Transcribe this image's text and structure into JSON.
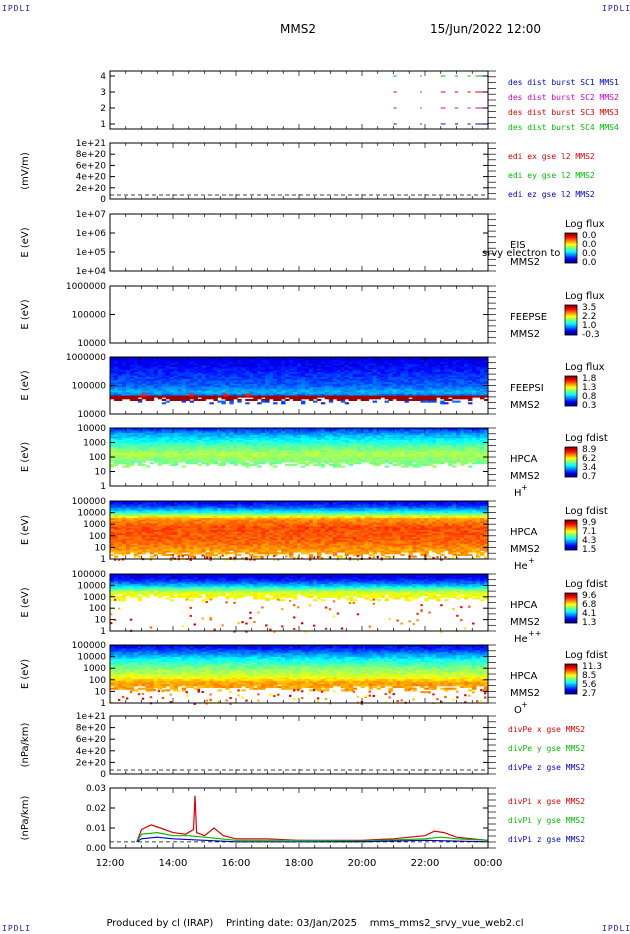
{
  "header": {
    "corner_tl": "IPDLI",
    "corner_tr": "IPDLI",
    "corner_bl": "IPDLI",
    "corner_br": "IPDLI",
    "title": "MMS2",
    "datetime": "15/Jun/2022 12:00"
  },
  "footer": {
    "text": "Produced by cl (IRAP)    Printing date: 03/Jan/2025    mms_mms2_srvy_vue_web2.cl"
  },
  "chart_data": {
    "type": "multi-panel",
    "x_ticks": [
      "12:00",
      "14:00",
      "16:00",
      "18:00",
      "20:00",
      "22:00",
      "00:00"
    ],
    "x_range_hours": [
      12,
      24
    ],
    "panels": [
      {
        "type": "line",
        "ylabel": "",
        "y_ticks": [
          "4",
          "3",
          "2",
          "1"
        ],
        "legend": [
          {
            "text": "des dist burst SC1 MMS1",
            "color": "#0000cc"
          },
          {
            "text": "des dist burst SC2 MMS2",
            "color": "#cc00cc"
          },
          {
            "text": "des dist burst SC3 MMS3",
            "color": "#dd0000"
          },
          {
            "text": "des dist burst SC4 MMS4",
            "color": "#00bb00"
          }
        ],
        "burst_intervals_hours": [
          [
            21.0,
            21.1
          ],
          [
            21.85,
            21.9
          ],
          [
            22.5,
            22.65
          ],
          [
            22.95,
            23.05
          ],
          [
            23.35,
            23.45
          ],
          [
            23.6,
            24.0
          ]
        ]
      },
      {
        "type": "line",
        "ylabel": "(mV/m)",
        "y_ticks": [
          "1e+21",
          "8e+20",
          "6e+20",
          "4e+20",
          "2e+20",
          "0"
        ],
        "legend": [
          {
            "text": "edi ex gse l2 MMS2",
            "color": "#dd0000"
          },
          {
            "text": "edi ey gse l2 MMS2",
            "color": "#00bb00"
          },
          {
            "text": "edi ez gse l2 MMS2",
            "color": "#0000cc"
          }
        ]
      },
      {
        "type": "heatmap",
        "ylabel": "E (eV)",
        "y_ticks": [
          "1e+07",
          "1e+06",
          "1e+05",
          "1e+04"
        ],
        "instrument": "EIS",
        "sc": "MMS2",
        "extra_text": "srvy electron to",
        "colorbar_title": "Log flux",
        "colorbar_ticks": [
          "0.0",
          "0.0",
          "0.0",
          "0.0"
        ]
      },
      {
        "type": "heatmap",
        "ylabel": "E (eV)",
        "y_ticks": [
          "1000000",
          "100000",
          "10000"
        ],
        "instrument": "FEEPSE",
        "sc": "MMS2",
        "colorbar_title": "Log flux",
        "colorbar_ticks": [
          "3.5",
          "2.2",
          "1.0",
          "-0.3"
        ]
      },
      {
        "type": "heatmap",
        "ylabel": "E (eV)",
        "y_ticks": [
          "1000000",
          "100000",
          "10000"
        ],
        "instrument": "FEEPSI",
        "sc": "MMS2",
        "colorbar_title": "Log flux",
        "colorbar_ticks": [
          "1.8",
          "1.3",
          "0.8",
          "0.3"
        ]
      },
      {
        "type": "heatmap",
        "ylabel": "E (eV)",
        "y_ticks": [
          "10000",
          "1000",
          "100",
          "10",
          "1"
        ],
        "instrument": "HPCA",
        "sc": "MMS2",
        "species": "H",
        "species_sup": "+",
        "colorbar_title": "Log fdist",
        "colorbar_ticks": [
          "8.9",
          "6.2",
          "3.4",
          "0.7"
        ]
      },
      {
        "type": "heatmap",
        "ylabel": "E (eV)",
        "y_ticks": [
          "100000",
          "10000",
          "1000",
          "100",
          "10",
          "1"
        ],
        "instrument": "HPCA",
        "sc": "MMS2",
        "species": "He",
        "species_sup": "+",
        "colorbar_title": "Log fdist",
        "colorbar_ticks": [
          "9.9",
          "7.1",
          "4.3",
          "1.5"
        ]
      },
      {
        "type": "heatmap",
        "ylabel": "E (eV)",
        "y_ticks": [
          "100000",
          "10000",
          "1000",
          "100",
          "10",
          "1"
        ],
        "instrument": "HPCA",
        "sc": "MMS2",
        "species": "He",
        "species_sup": "++",
        "colorbar_title": "Log fdist",
        "colorbar_ticks": [
          "9.6",
          "6.8",
          "4.1",
          "1.3"
        ]
      },
      {
        "type": "heatmap",
        "ylabel": "E (eV)",
        "y_ticks": [
          "100000",
          "10000",
          "1000",
          "100",
          "10",
          "1"
        ],
        "instrument": "HPCA",
        "sc": "MMS2",
        "species": "O",
        "species_sup": "+",
        "colorbar_title": "Log fdist",
        "colorbar_ticks": [
          "11.3",
          "8.5",
          "5.6",
          "2.7"
        ]
      },
      {
        "type": "line",
        "ylabel": "(nPa/km)",
        "y_ticks": [
          "1e+21",
          "8e+20",
          "6e+20",
          "4e+20",
          "2e+20",
          "0"
        ],
        "legend": [
          {
            "text": "divPe x gse MMS2",
            "color": "#dd0000"
          },
          {
            "text": "divPe y gse MMS2",
            "color": "#00bb00"
          },
          {
            "text": "divPe z gse MMS2",
            "color": "#0000cc"
          }
        ]
      },
      {
        "type": "line",
        "ylabel": "(nPa/km)",
        "y_ticks": [
          "0.03",
          "0.02",
          "0.01",
          "0.00"
        ],
        "ylim": [
          -0.004,
          0.035
        ],
        "legend": [
          {
            "text": "divPi x gse MMS2",
            "color": "#dd0000"
          },
          {
            "text": "divPi y gse MMS2",
            "color": "#00bb00"
          },
          {
            "text": "divPi z gse MMS2",
            "color": "#0000cc"
          }
        ],
        "series": [
          {
            "name": "divPi x gse MMS2",
            "color": "#dd0000",
            "t": [
              12.85,
              13.0,
              13.3,
              13.6,
              14.0,
              14.4,
              14.65,
              14.7,
              14.75,
              15.0,
              15.3,
              15.6,
              16.0,
              17.0,
              18.0,
              19.0,
              20.0,
              21.0,
              21.5,
              22.0,
              22.3,
              22.6,
              23.0,
              23.5,
              24.0
            ],
            "v": [
              0.0,
              0.008,
              0.011,
              0.009,
              0.006,
              0.005,
              0.008,
              0.03,
              0.006,
              0.004,
              0.009,
              0.004,
              0.002,
              0.002,
              0.001,
              0.001,
              0.001,
              0.002,
              0.003,
              0.004,
              0.007,
              0.006,
              0.003,
              0.002,
              0.001
            ]
          },
          {
            "name": "divPi y gse MMS2",
            "color": "#00bb00",
            "t": [
              12.85,
              13.0,
              13.5,
              14.0,
              14.5,
              15.0,
              16.0,
              18.0,
              20.0,
              22.0,
              22.5,
              23.0,
              24.0
            ],
            "v": [
              0.0,
              0.005,
              0.006,
              0.004,
              0.004,
              0.003,
              0.001,
              0.001,
              0.0005,
              0.002,
              0.003,
              0.002,
              0.001
            ]
          },
          {
            "name": "divPi z gse MMS2",
            "color": "#0000cc",
            "t": [
              12.85,
              13.0,
              13.5,
              14.0,
              15.0,
              16.0,
              18.0,
              20.0,
              22.0,
              24.0
            ],
            "v": [
              0.0,
              0.002,
              0.003,
              0.002,
              0.001,
              0.0,
              0.0,
              0.0,
              0.001,
              0.0
            ]
          }
        ]
      }
    ]
  }
}
